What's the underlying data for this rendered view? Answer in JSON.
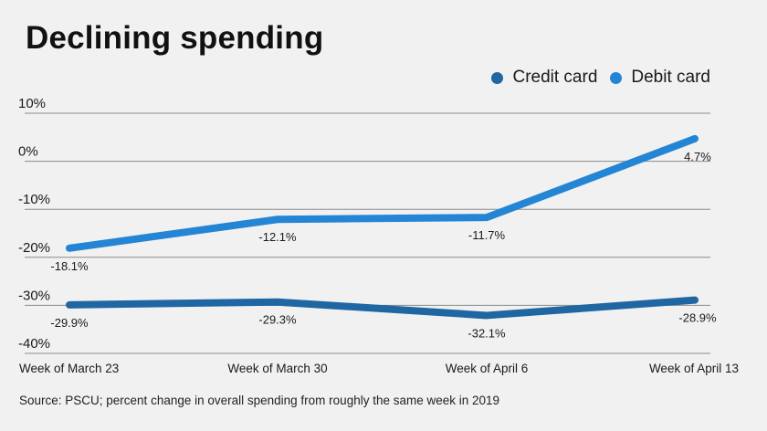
{
  "chart_data": {
    "type": "line",
    "title": "Declining spending",
    "xlabel": "",
    "ylabel": "",
    "categories": [
      "Week of March 23",
      "Week of March 30",
      "Week of April 6",
      "Week of April 13"
    ],
    "ylim": [
      -40,
      10
    ],
    "yticks": [
      10,
      0,
      -10,
      -20,
      -30,
      -40
    ],
    "ytick_labels": [
      "10%",
      "0%",
      "-10%",
      "-20%",
      "-30%",
      "-40%"
    ],
    "grid": true,
    "legend_position": "top-right",
    "series": [
      {
        "name": "Credit card",
        "color": "#1f66a3",
        "values": [
          -29.9,
          -29.3,
          -32.1,
          -28.9
        ],
        "labels": [
          "-29.9%",
          "-29.3%",
          "-32.1%",
          "-28.9%"
        ]
      },
      {
        "name": "Debit card",
        "color": "#2385d4",
        "values": [
          -18.1,
          -12.1,
          -11.7,
          4.7
        ],
        "labels": [
          "-18.1%",
          "-12.1%",
          "-11.7%",
          "4.7%"
        ]
      }
    ],
    "source": "Source: PSCU; percent change in overall spending from roughly the same week in 2019"
  }
}
